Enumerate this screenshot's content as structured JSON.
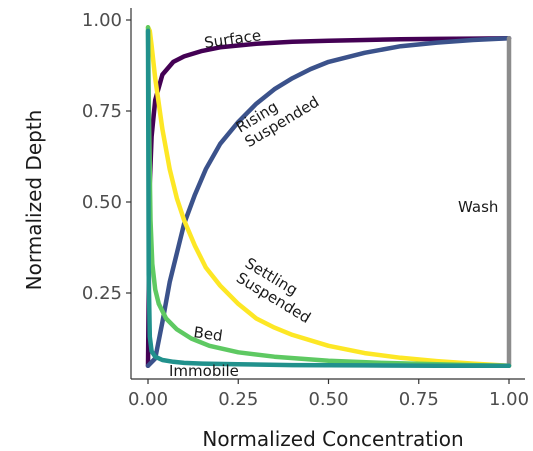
{
  "chart_data": {
    "type": "line",
    "title": "",
    "xlabel": "Normalized Concentration",
    "ylabel": "Normalized Depth",
    "xlim": [
      0,
      1
    ],
    "ylim": [
      0,
      1
    ],
    "xticks": [
      "0.00",
      "0.25",
      "0.50",
      "0.75",
      "1.00"
    ],
    "yticks": [
      "0.25",
      "0.50",
      "0.75",
      "1.00"
    ],
    "grid": false,
    "legend": "none",
    "series": [
      {
        "name": "Surface",
        "color": "#440154",
        "x": [
          0.0,
          0.005,
          0.01,
          0.02,
          0.04,
          0.07,
          0.1,
          0.15,
          0.2,
          0.3,
          0.4,
          0.5,
          0.6,
          0.7,
          0.8,
          0.9,
          1.0
        ],
        "y": [
          0.05,
          0.55,
          0.68,
          0.78,
          0.85,
          0.885,
          0.9,
          0.915,
          0.925,
          0.935,
          0.94,
          0.943,
          0.945,
          0.947,
          0.948,
          0.949,
          0.95
        ]
      },
      {
        "name": "Rising\nSuspended",
        "color": "#3b528b",
        "x": [
          0.0,
          0.02,
          0.04,
          0.06,
          0.08,
          0.1,
          0.13,
          0.16,
          0.2,
          0.25,
          0.3,
          0.35,
          0.4,
          0.45,
          0.5,
          0.6,
          0.7,
          0.8,
          0.9,
          1.0
        ],
        "y": [
          0.05,
          0.07,
          0.17,
          0.28,
          0.36,
          0.44,
          0.52,
          0.59,
          0.66,
          0.72,
          0.77,
          0.81,
          0.84,
          0.865,
          0.885,
          0.91,
          0.928,
          0.938,
          0.945,
          0.95
        ]
      },
      {
        "name": "Wash",
        "color": "#8c8c8c",
        "x": [
          1.0,
          1.0
        ],
        "y": [
          0.05,
          0.95
        ]
      },
      {
        "name": "Settling\nSuspended",
        "color": "#fde725",
        "x": [
          0.0,
          0.005,
          0.01,
          0.02,
          0.04,
          0.06,
          0.08,
          0.1,
          0.13,
          0.16,
          0.2,
          0.25,
          0.3,
          0.35,
          0.4,
          0.5,
          0.6,
          0.7,
          0.8,
          0.9,
          1.0
        ],
        "y": [
          0.98,
          0.97,
          0.93,
          0.84,
          0.7,
          0.59,
          0.51,
          0.45,
          0.38,
          0.32,
          0.27,
          0.22,
          0.18,
          0.155,
          0.135,
          0.105,
          0.085,
          0.072,
          0.063,
          0.056,
          0.05
        ]
      },
      {
        "name": "Bed",
        "color": "#5ec962",
        "x": [
          0.0,
          0.003,
          0.007,
          0.012,
          0.02,
          0.03,
          0.05,
          0.08,
          0.12,
          0.17,
          0.25,
          0.35,
          0.5,
          0.65,
          0.8,
          0.9,
          1.0
        ],
        "y": [
          0.98,
          0.7,
          0.45,
          0.33,
          0.26,
          0.22,
          0.18,
          0.15,
          0.125,
          0.105,
          0.087,
          0.075,
          0.064,
          0.058,
          0.054,
          0.052,
          0.05
        ]
      },
      {
        "name": "Immobile",
        "color": "#21918c",
        "x": [
          0.0,
          0.002,
          0.005,
          0.01,
          0.02,
          0.04,
          0.07,
          0.1,
          0.15,
          0.25,
          0.4,
          0.6,
          0.8,
          1.0
        ],
        "y": [
          0.97,
          0.3,
          0.13,
          0.09,
          0.075,
          0.066,
          0.061,
          0.058,
          0.056,
          0.054,
          0.052,
          0.051,
          0.05,
          0.05
        ]
      }
    ]
  }
}
